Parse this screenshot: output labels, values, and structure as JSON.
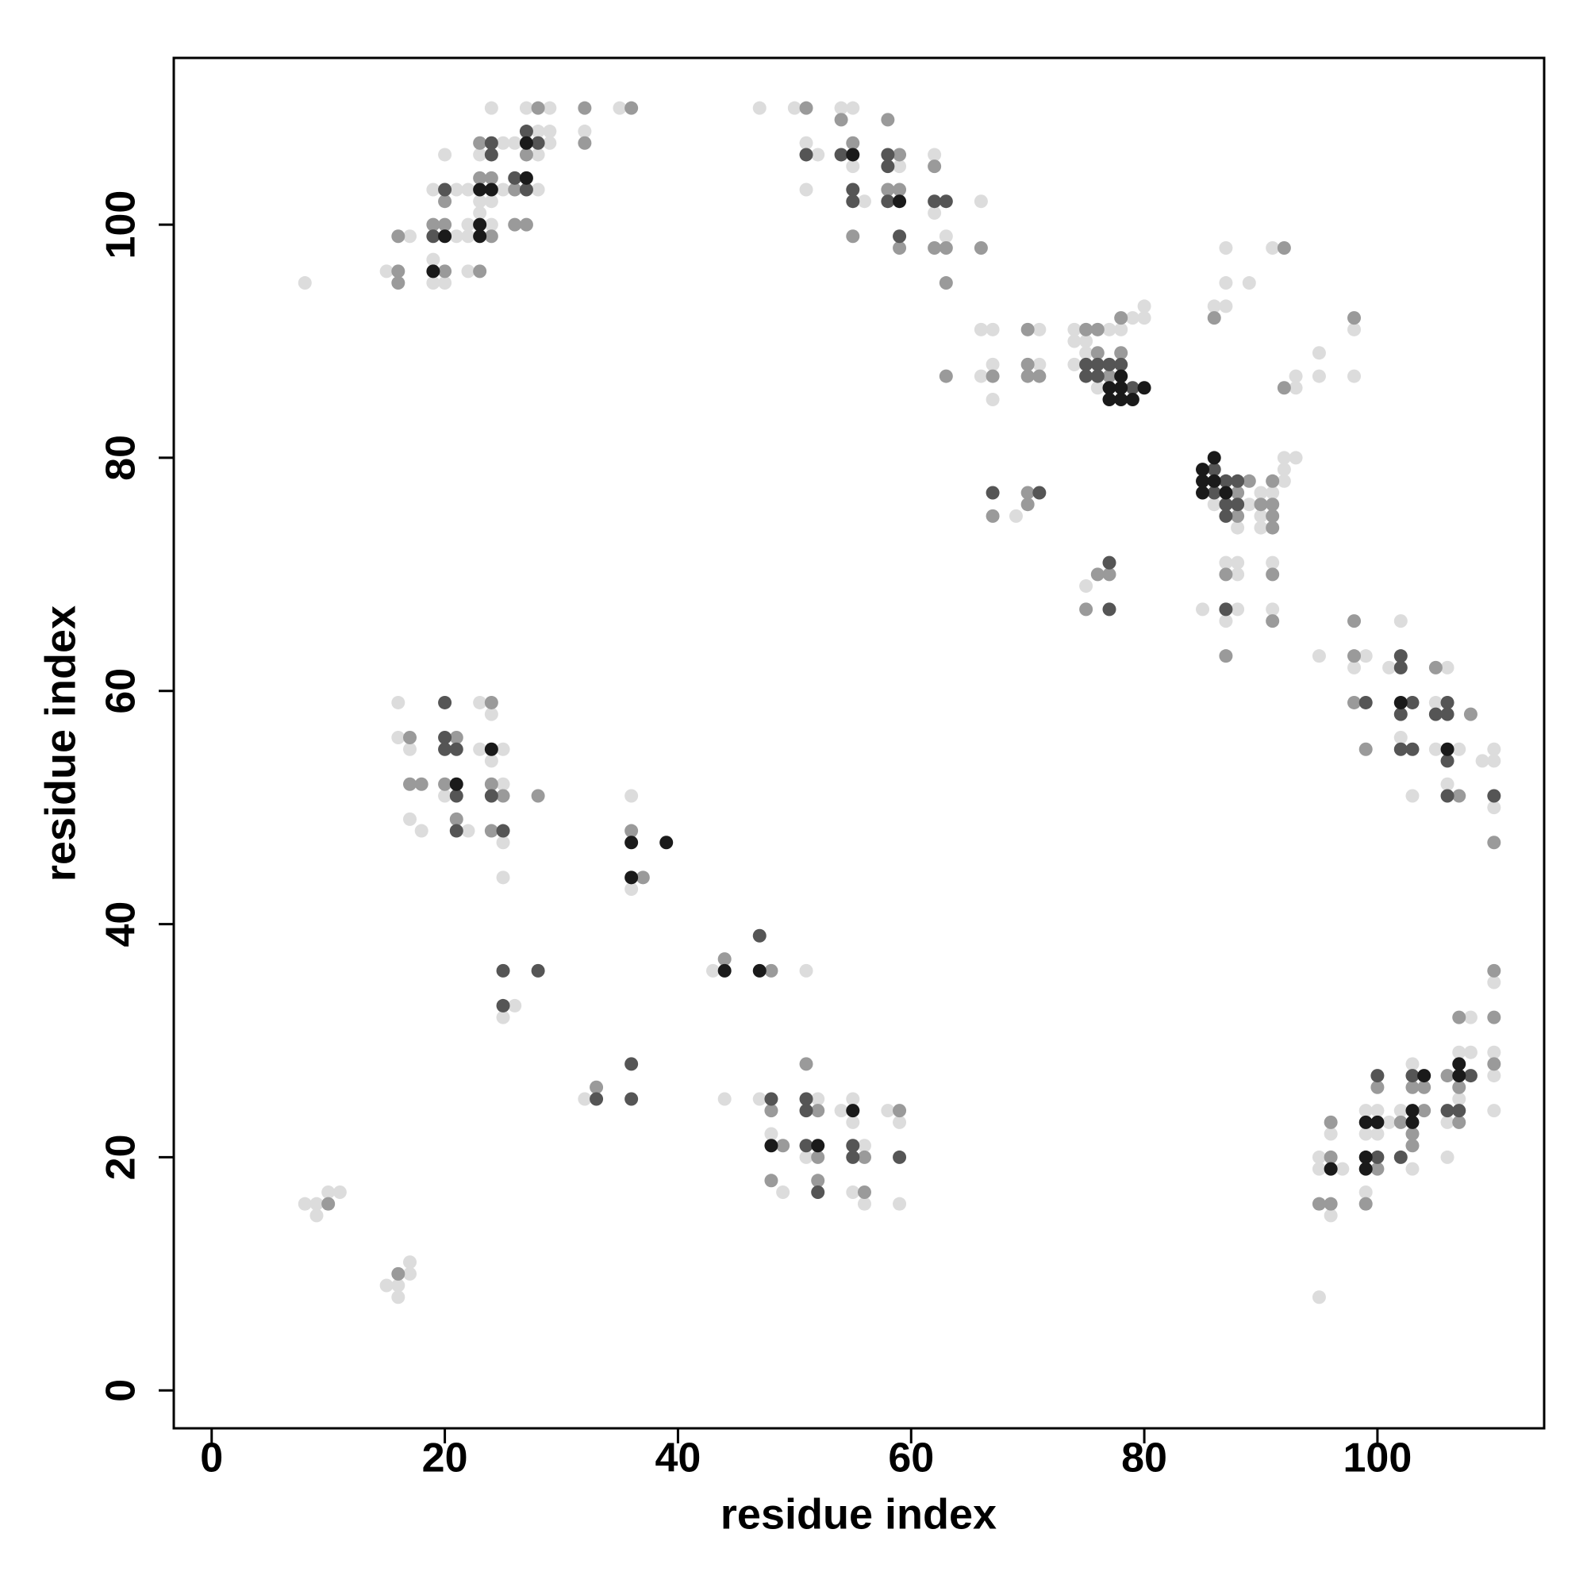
{
  "chart_data": {
    "type": "scatter",
    "x_label": "residue index",
    "y_label": "residue index",
    "xlim": [
      -3.25,
      114.3
    ],
    "ylim": [
      -3.25,
      114.3
    ],
    "xticks": [
      0,
      20,
      40,
      60,
      80,
      100
    ],
    "yticks": [
      0,
      20,
      40,
      60,
      80,
      100
    ],
    "grid": false,
    "series": [
      {
        "color": "#dcdcdc",
        "x": [
          8,
          15,
          17,
          19,
          20,
          19,
          21,
          19,
          21,
          20,
          22,
          22,
          22,
          24,
          23,
          22,
          25,
          23,
          24,
          23,
          25,
          28,
          26,
          28,
          29,
          29,
          28,
          24,
          27,
          29,
          32,
          35,
          47,
          50,
          51,
          52,
          51,
          54,
          55,
          55,
          56,
          59,
          62,
          62,
          63,
          66,
          66,
          67,
          66,
          67,
          67,
          71,
          71,
          74,
          74,
          75,
          77,
          75,
          74,
          79,
          80,
          80,
          78,
          76,
          69,
          75,
          86,
          88,
          89,
          90,
          90,
          91,
          92,
          92,
          92,
          93,
          90,
          85,
          87,
          88,
          88,
          87,
          88,
          91,
          91,
          87,
          86,
          87,
          87,
          89,
          91,
          93,
          93,
          95,
          95,
          98,
          98,
          95,
          99,
          98,
          101,
          102,
          102,
          103,
          106,
          105,
          105,
          107,
          106,
          109,
          110,
          110,
          110,
          95,
          95,
          96,
          96,
          97,
          99,
          99,
          100,
          99,
          100,
          101,
          102,
          103,
          103,
          107,
          108,
          107,
          106,
          106,
          108,
          110,
          110,
          110,
          110,
          16,
          16,
          17,
          17,
          18,
          20,
          22,
          23,
          24,
          23,
          25,
          24,
          25,
          25,
          25,
          36,
          36,
          26,
          25,
          43,
          51,
          32,
          44,
          47,
          48,
          49,
          52,
          51,
          54,
          55,
          55,
          56,
          55,
          56,
          58,
          59,
          59,
          8,
          9,
          9,
          10,
          11,
          15,
          16,
          16,
          17,
          17,
          95
        ],
        "values": [
          95,
          96,
          99,
          95,
          95,
          97,
          99,
          103,
          103,
          106,
          96,
          99,
          100,
          100,
          101,
          103,
          103,
          102,
          102,
          106,
          107,
          103,
          107,
          108,
          108,
          107,
          106,
          110,
          110,
          110,
          108,
          110,
          110,
          110,
          107,
          106,
          103,
          110,
          110,
          105,
          102,
          105,
          106,
          101,
          99,
          102,
          91,
          91,
          87,
          88,
          85,
          91,
          88,
          91,
          90,
          90,
          91,
          89,
          88,
          92,
          93,
          92,
          91,
          86,
          75,
          69,
          76,
          74,
          76,
          75,
          74,
          77,
          78,
          79,
          80,
          80,
          77,
          67,
          71,
          71,
          70,
          66,
          67,
          71,
          67,
          98,
          93,
          93,
          95,
          95,
          98,
          87,
          86,
          89,
          87,
          91,
          87,
          63,
          63,
          62,
          62,
          66,
          56,
          51,
          62,
          59,
          55,
          55,
          52,
          54,
          55,
          54,
          50,
          20,
          19,
          22,
          15,
          19,
          24,
          22,
          22,
          17,
          24,
          23,
          24,
          19,
          28,
          29,
          29,
          25,
          23,
          20,
          32,
          35,
          29,
          27,
          24,
          59,
          56,
          55,
          49,
          48,
          51,
          48,
          59,
          58,
          55,
          55,
          54,
          52,
          47,
          44,
          51,
          43,
          33,
          32,
          36,
          36,
          25,
          25,
          25,
          22,
          17,
          25,
          20,
          24,
          25,
          23,
          21,
          17,
          16,
          24,
          23,
          16,
          16,
          16,
          15,
          17,
          17,
          9,
          9,
          8,
          11,
          10,
          8
        ]
      },
      {
        "color": "#9a9a9a",
        "x": [
          16,
          16,
          16,
          20,
          19,
          20,
          20,
          23,
          24,
          23,
          24,
          23,
          26,
          27,
          26,
          27,
          28,
          32,
          32,
          36,
          51,
          54,
          55,
          55,
          58,
          59,
          58,
          59,
          59,
          62,
          62,
          63,
          63,
          66,
          67,
          70,
          70,
          70,
          71,
          63,
          75,
          76,
          76,
          77,
          78,
          78,
          67,
          70,
          70,
          76,
          77,
          75,
          88,
          88,
          89,
          90,
          91,
          91,
          91,
          91,
          87,
          87,
          91,
          91,
          86,
          92,
          92,
          98,
          98,
          98,
          98,
          99,
          105,
          108,
          107,
          110,
          96,
          96,
          95,
          96,
          100,
          99,
          100,
          102,
          104,
          103,
          104,
          103,
          103,
          106,
          107,
          107,
          107,
          110,
          110,
          110,
          17,
          17,
          18,
          21,
          20,
          21,
          24,
          24,
          25,
          24,
          28,
          36,
          37,
          44,
          48,
          33,
          48,
          49,
          48,
          51,
          52,
          52,
          52,
          56,
          56,
          59,
          16,
          10
        ],
        "values": [
          96,
          95,
          99,
          96,
          100,
          100,
          102,
          96,
          99,
          104,
          104,
          107,
          100,
          100,
          103,
          106,
          110,
          110,
          107,
          110,
          110,
          109,
          107,
          99,
          109,
          106,
          103,
          103,
          98,
          105,
          98,
          98,
          95,
          98,
          87,
          91,
          88,
          87,
          87,
          87,
          91,
          91,
          89,
          87,
          92,
          89,
          75,
          77,
          76,
          70,
          70,
          67,
          77,
          75,
          78,
          76,
          78,
          76,
          75,
          74,
          70,
          63,
          70,
          66,
          92,
          98,
          86,
          92,
          66,
          63,
          59,
          55,
          62,
          58,
          51,
          47,
          20,
          23,
          16,
          16,
          19,
          16,
          26,
          23,
          24,
          26,
          26,
          22,
          21,
          27,
          26,
          23,
          32,
          36,
          32,
          28,
          56,
          52,
          52,
          56,
          52,
          49,
          59,
          52,
          51,
          48,
          51,
          48,
          44,
          37,
          36,
          26,
          24,
          21,
          18,
          28,
          24,
          20,
          18,
          20,
          17,
          24,
          10,
          16
        ]
      },
      {
        "color": "#555555",
        "x": [
          19,
          20,
          24,
          24,
          27,
          26,
          28,
          27,
          51,
          54,
          55,
          55,
          58,
          58,
          58,
          59,
          62,
          63,
          75,
          76,
          77,
          78,
          75,
          76,
          79,
          67,
          71,
          77,
          77,
          86,
          86,
          87,
          87,
          87,
          88,
          88,
          87,
          99,
          102,
          102,
          103,
          102,
          102,
          103,
          106,
          105,
          106,
          106,
          106,
          110,
          100,
          100,
          102,
          103,
          106,
          107,
          108,
          20,
          20,
          20,
          21,
          21,
          21,
          24,
          25,
          25,
          28,
          25,
          47,
          33,
          36,
          36,
          48,
          51,
          51,
          51,
          52,
          55,
          55,
          59
        ],
        "values": [
          99,
          103,
          107,
          106,
          103,
          104,
          107,
          108,
          106,
          106,
          103,
          102,
          106,
          105,
          102,
          99,
          102,
          102,
          88,
          88,
          88,
          88,
          87,
          87,
          86,
          77,
          77,
          71,
          67,
          79,
          77,
          78,
          76,
          75,
          78,
          76,
          67,
          59,
          63,
          62,
          59,
          58,
          55,
          55,
          59,
          58,
          58,
          54,
          51,
          51,
          20,
          27,
          20,
          27,
          24,
          24,
          27,
          59,
          56,
          55,
          55,
          51,
          48,
          51,
          48,
          36,
          36,
          33,
          39,
          25,
          28,
          25,
          25,
          25,
          24,
          21,
          17,
          21,
          20,
          20
        ]
      },
      {
        "color": "#1a1a1a",
        "x": [
          19,
          20,
          23,
          23,
          23,
          24,
          27,
          27,
          55,
          59,
          77,
          78,
          80,
          77,
          78,
          79,
          78,
          85,
          85,
          85,
          86,
          86,
          87,
          102,
          106,
          96,
          99,
          100,
          99,
          99,
          103,
          103,
          104,
          107,
          107,
          21,
          24,
          36,
          39,
          36,
          44,
          47,
          48,
          52,
          55
        ],
        "values": [
          96,
          99,
          99,
          100,
          103,
          103,
          104,
          107,
          106,
          102,
          86,
          86,
          86,
          85,
          85,
          85,
          87,
          79,
          78,
          77,
          80,
          78,
          77,
          59,
          55,
          19,
          23,
          23,
          20,
          19,
          24,
          23,
          27,
          28,
          27,
          52,
          55,
          47,
          47,
          44,
          36,
          36,
          21,
          21,
          24
        ]
      }
    ]
  }
}
